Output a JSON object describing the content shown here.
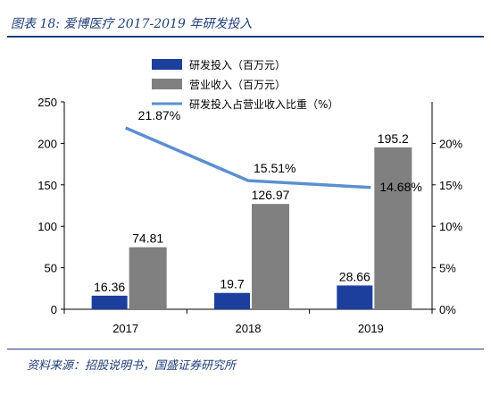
{
  "caption": "图表 18:  爱博医疗 2017-2019 年研发投入",
  "source": "资料来源：招股说明书，国盛证券研究所",
  "colors": {
    "rd_bar": "#1c3f9e",
    "revenue_bar": "#808080",
    "ratio_line": "#5b8fd1",
    "caption": "#1f3d7a"
  },
  "chart_data": {
    "type": "bar",
    "categories": [
      "2017",
      "2018",
      "2019"
    ],
    "series": [
      {
        "name": "研发投入（百万元）",
        "kind": "bar",
        "axis": "left",
        "values": [
          16.36,
          19.7,
          28.66
        ],
        "labels": [
          "16.36",
          "19.7",
          "28.66"
        ]
      },
      {
        "name": "营业收入（百万元）",
        "kind": "bar",
        "axis": "left",
        "values": [
          74.81,
          126.97,
          195.2
        ],
        "labels": [
          "74.81",
          "126.97",
          "195.2"
        ]
      },
      {
        "name": "研发投入占营业收入比重（%）",
        "kind": "line",
        "axis": "right",
        "values": [
          21.87,
          15.51,
          14.68
        ],
        "labels": [
          "21.87%",
          "15.51%",
          "14.68%"
        ]
      }
    ],
    "left_axis": {
      "ylim": [
        0,
        250
      ],
      "ticks": [
        "0",
        "50",
        "100",
        "150",
        "200",
        "250"
      ]
    },
    "right_axis": {
      "ylim": [
        0,
        25
      ],
      "ticks": [
        "0%",
        "5%",
        "10%",
        "15%",
        "20%"
      ]
    },
    "grid": false,
    "legend_placement": "top-center"
  }
}
